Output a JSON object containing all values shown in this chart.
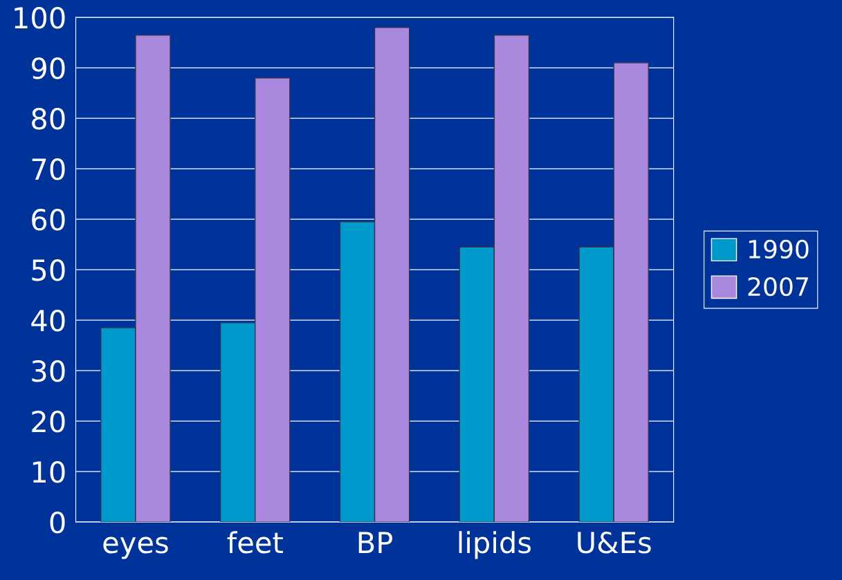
{
  "chart_data": {
    "type": "bar",
    "categories": [
      "eyes",
      "feet",
      "BP",
      "lipids",
      "U&Es"
    ],
    "series": [
      {
        "name": "1990",
        "color": "#0099cc",
        "values": [
          38.5,
          39.5,
          59.5,
          54.5,
          54.5
        ]
      },
      {
        "name": "2007",
        "color": "#aa88dd",
        "values": [
          96.5,
          88,
          98,
          96.5,
          91
        ]
      }
    ],
    "ylim": [
      0,
      100
    ],
    "yticks": [
      0,
      10,
      20,
      30,
      40,
      50,
      60,
      70,
      80,
      90,
      100
    ],
    "grid": "y",
    "legend": "right"
  }
}
